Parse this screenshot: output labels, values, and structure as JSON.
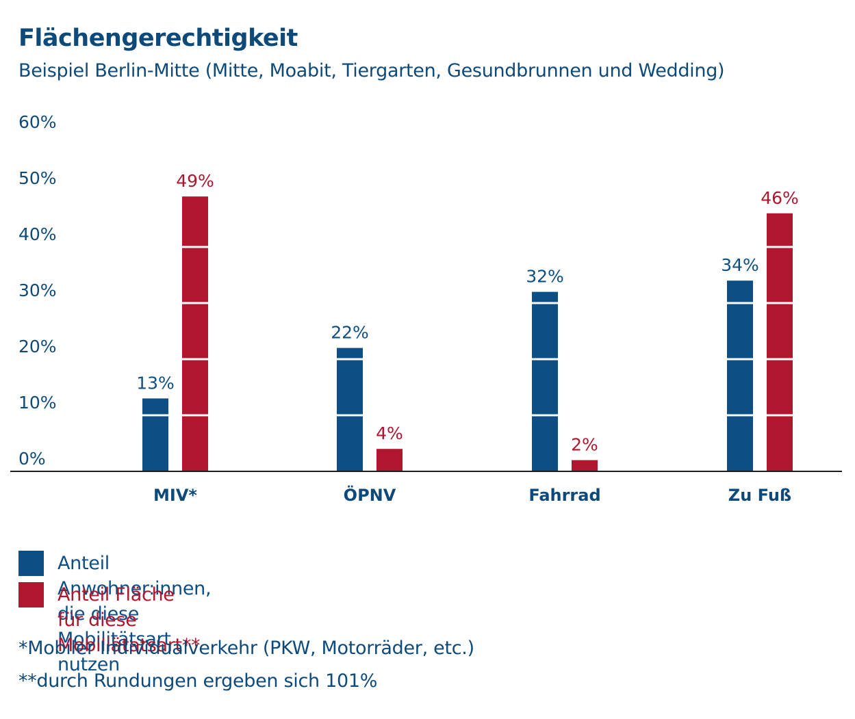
{
  "chart_data": {
    "type": "bar",
    "title": "Flächengerechtigkeit",
    "subtitle": "Beispiel Berlin-Mitte (Mitte, Moabit, Tiergarten, Gesundbrunnen und Wedding)",
    "categories": [
      "MIV*",
      "ÖPNV",
      "Fahrrad",
      "Zu Fuß"
    ],
    "ylim": [
      0,
      60
    ],
    "yticks": [
      0,
      10,
      20,
      30,
      40,
      50,
      60
    ],
    "ytick_labels": [
      "0%",
      "10%",
      "20%",
      "30%",
      "40%",
      "50%",
      "60%"
    ],
    "series": [
      {
        "name": "Anteil Anwohner:innen, die diese Mobilitätsart nutzen",
        "color": "#0d4f84",
        "values": [
          13,
          22,
          32,
          34
        ],
        "labels": [
          "13%",
          "22%",
          "32%",
          "34%"
        ]
      },
      {
        "name": "Anteil Fläche für diese Mobiliätatsart**",
        "color": "#b0162e",
        "values": [
          49,
          4,
          2,
          46
        ],
        "labels": [
          "49%",
          "4%",
          "2%",
          "46%"
        ]
      }
    ],
    "legend_position": "bottom-left"
  },
  "footnotes": [
    "*Mobiler Individualverkehr (PKW, Motorräder, etc.)",
    "**durch Rundungen ergeben sich 101%"
  ],
  "colors": {
    "text_blue": "#0d4a7a",
    "axis": "#1a1a1a"
  }
}
